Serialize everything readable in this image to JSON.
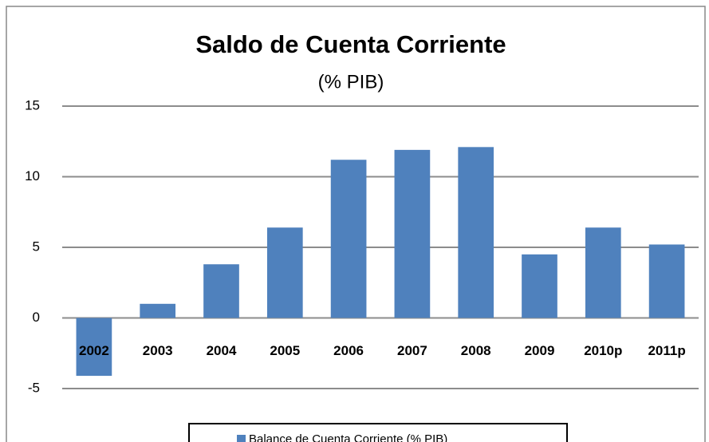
{
  "chart_data": {
    "type": "bar",
    "title": "Saldo de Cuenta Corriente",
    "subtitle": "(% PIB)",
    "categories": [
      "2002",
      "2003",
      "2004",
      "2005",
      "2006",
      "2007",
      "2008",
      "2009",
      "2010p",
      "2011p"
    ],
    "series": [
      {
        "name": "Balance de Cuenta Corriente  (% PIB)",
        "color": "#4f81bd",
        "values": [
          -4.1,
          1.0,
          3.8,
          6.4,
          11.2,
          11.9,
          12.1,
          4.5,
          6.4,
          5.2
        ]
      }
    ],
    "ylim": [
      -5,
      15
    ],
    "yticks": [
      -5,
      0,
      5,
      10,
      15
    ],
    "grid": true,
    "legend": "bottom"
  }
}
